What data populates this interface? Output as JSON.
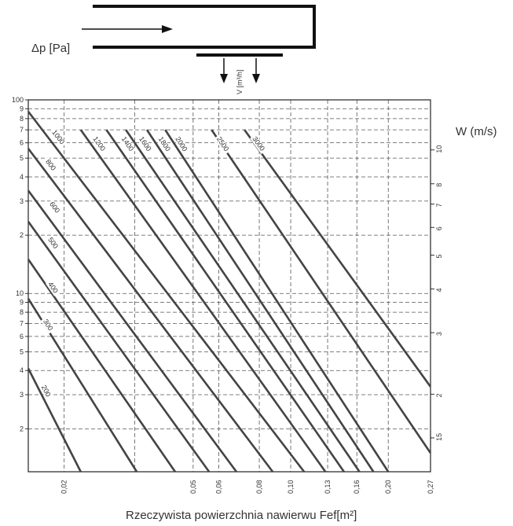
{
  "diagram": {
    "pressure_label": "Δp [Pa]",
    "flow_label": "V [m³/h]"
  },
  "chart_data": {
    "type": "line",
    "xlabel": "Rzeczywista powierzchnia nawierwu Fef[m²]",
    "ylabel": "Δp [Pa]",
    "right_label": "W (m/s)",
    "x_scale": "log",
    "y_scale": "log",
    "xlim": [
      0.0155,
      0.27
    ],
    "ylim": [
      1.2,
      100
    ],
    "x_ticks": [
      "0,02",
      "0,05",
      "0,06",
      "0,08",
      "0,10",
      "0,13",
      "0,16",
      "0,20",
      "0,27"
    ],
    "x_tick_values": [
      0.02,
      0.05,
      0.06,
      0.08,
      0.1,
      0.13,
      0.16,
      0.2,
      0.27
    ],
    "y_ticks": [
      {
        "v": 100,
        "t": "100"
      },
      {
        "v": 90,
        "t": "9"
      },
      {
        "v": 80,
        "t": "8"
      },
      {
        "v": 70,
        "t": "7"
      },
      {
        "v": 60,
        "t": "6"
      },
      {
        "v": 50,
        "t": "5"
      },
      {
        "v": 40,
        "t": "4"
      },
      {
        "v": 30,
        "t": "3"
      },
      {
        "v": 20,
        "t": "2"
      },
      {
        "v": 10,
        "t": "10"
      },
      {
        "v": 9,
        "t": "9"
      },
      {
        "v": 8,
        "t": "8"
      },
      {
        "v": 7,
        "t": "7"
      },
      {
        "v": 6,
        "t": "6"
      },
      {
        "v": 5,
        "t": "5"
      },
      {
        "v": 4,
        "t": "4"
      },
      {
        "v": 3,
        "t": "3"
      },
      {
        "v": 2,
        "t": "2"
      }
    ],
    "right_ticks": [
      {
        "v": 10,
        "t": "10"
      },
      {
        "v": 8,
        "t": "8"
      },
      {
        "v": 7,
        "t": "7"
      },
      {
        "v": 6,
        "t": "6"
      },
      {
        "v": 5,
        "t": "5"
      },
      {
        "v": 4,
        "t": "4"
      },
      {
        "v": 3,
        "t": "3"
      },
      {
        "v": 2,
        "t": "2"
      },
      {
        "v": 1.5,
        "t": "15"
      }
    ],
    "series": [
      {
        "name": "200",
        "points": [
          [
            0.0155,
            4.1
          ],
          [
            0.0225,
            1.2
          ]
        ],
        "label_at": [
          0.017,
          3.3
        ]
      },
      {
        "name": "300",
        "points": [
          [
            0.0155,
            9.4
          ],
          [
            0.0335,
            1.2
          ]
        ],
        "label_at": [
          0.0172,
          7.2
        ]
      },
      {
        "name": "400",
        "points": [
          [
            0.0155,
            15
          ],
          [
            0.044,
            1.2
          ]
        ],
        "label_at": [
          0.0178,
          11.2
        ]
      },
      {
        "name": "500",
        "points": [
          [
            0.0155,
            23.5
          ],
          [
            0.056,
            1.2
          ]
        ],
        "label_at": [
          0.0178,
          19
        ]
      },
      {
        "name": "600",
        "points": [
          [
            0.0155,
            34
          ],
          [
            0.068,
            1.2
          ]
        ],
        "label_at": [
          0.018,
          29
        ]
      },
      {
        "name": "800",
        "points": [
          [
            0.0155,
            56
          ],
          [
            0.088,
            1.2
          ]
        ],
        "label_at": [
          0.0175,
          48
        ]
      },
      {
        "name": "1000",
        "points": [
          [
            0.0155,
            87
          ],
          [
            0.11,
            1.2
          ]
        ],
        "label_at": [
          0.0183,
          68
        ]
      },
      {
        "name": "1200",
        "points": [
          [
            0.0225,
            70
          ],
          [
            0.128,
            1.2
          ]
        ],
        "label_at": [
          0.0245,
          63
        ]
      },
      {
        "name": "1400",
        "points": [
          [
            0.027,
            70
          ],
          [
            0.146,
            1.2
          ]
        ],
        "label_at": [
          0.03,
          63
        ]
      },
      {
        "name": "1600",
        "points": [
          [
            0.031,
            70
          ],
          [
            0.163,
            1.2
          ]
        ],
        "label_at": [
          0.034,
          63
        ]
      },
      {
        "name": "1800",
        "points": [
          [
            0.036,
            70
          ],
          [
            0.18,
            1.2
          ]
        ],
        "label_at": [
          0.039,
          63
        ]
      },
      {
        "name": "2000",
        "points": [
          [
            0.041,
            70
          ],
          [
            0.2,
            1.2
          ]
        ],
        "label_at": [
          0.044,
          63
        ]
      },
      {
        "name": "2500",
        "points": [
          [
            0.057,
            70
          ],
          [
            0.27,
            1.5
          ]
        ],
        "label_at": [
          0.059,
          63
        ]
      },
      {
        "name": "3000",
        "points": [
          [
            0.072,
            70
          ],
          [
            0.27,
            3.3
          ]
        ],
        "label_at": [
          0.076,
          63
        ]
      }
    ]
  }
}
